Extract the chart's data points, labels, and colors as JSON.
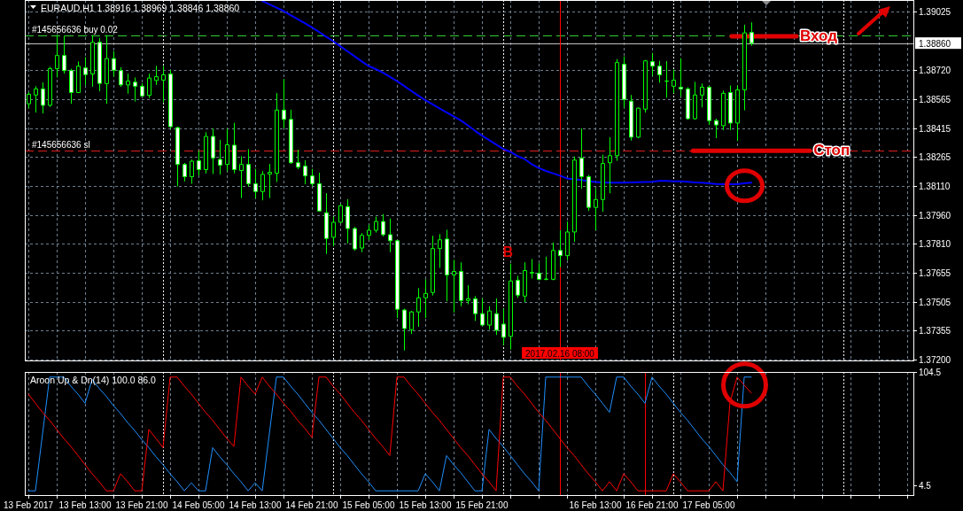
{
  "chart_data": [
    {
      "type": "candlestick",
      "title": "EURAUD,H1 1.38916 1.38969 1.38846 1.38860",
      "x": [
        "2017-02-13T05:00",
        "2017-02-13T06:00",
        "2017-02-13T07:00",
        "2017-02-13T08:00",
        "2017-02-13T09:00",
        "2017-02-13T10:00",
        "2017-02-13T11:00",
        "2017-02-13T12:00",
        "2017-02-13T13:00",
        "2017-02-13T14:00",
        "2017-02-13T15:00",
        "2017-02-13T16:00",
        "2017-02-13T17:00",
        "2017-02-13T18:00",
        "2017-02-13T19:00",
        "2017-02-13T20:00",
        "2017-02-13T21:00",
        "2017-02-13T22:00",
        "2017-02-13T23:00",
        "2017-02-14T00:00",
        "2017-02-14T01:00",
        "2017-02-14T02:00",
        "2017-02-14T03:00",
        "2017-02-14T04:00",
        "2017-02-14T05:00",
        "2017-02-14T06:00",
        "2017-02-14T07:00",
        "2017-02-14T08:00",
        "2017-02-14T09:00",
        "2017-02-14T10:00",
        "2017-02-14T11:00",
        "2017-02-14T12:00",
        "2017-02-14T13:00",
        "2017-02-14T14:00",
        "2017-02-14T15:00",
        "2017-02-14T16:00",
        "2017-02-14T17:00",
        "2017-02-14T18:00",
        "2017-02-14T19:00",
        "2017-02-14T20:00",
        "2017-02-14T21:00",
        "2017-02-14T22:00",
        "2017-02-14T23:00",
        "2017-02-15T00:00",
        "2017-02-15T01:00",
        "2017-02-15T02:00",
        "2017-02-15T03:00",
        "2017-02-15T04:00",
        "2017-02-15T05:00",
        "2017-02-15T06:00",
        "2017-02-15T07:00",
        "2017-02-15T08:00",
        "2017-02-15T09:00",
        "2017-02-15T10:00",
        "2017-02-15T11:00",
        "2017-02-15T12:00",
        "2017-02-15T13:00",
        "2017-02-15T14:00",
        "2017-02-15T15:00",
        "2017-02-15T16:00",
        "2017-02-15T17:00",
        "2017-02-15T18:00",
        "2017-02-15T19:00",
        "2017-02-15T20:00",
        "2017-02-15T21:00",
        "2017-02-15T22:00",
        "2017-02-15T23:00",
        "2017-02-16T00:00",
        "2017-02-16T01:00",
        "2017-02-16T02:00",
        "2017-02-16T03:00",
        "2017-02-16T04:00",
        "2017-02-16T05:00",
        "2017-02-16T06:00",
        "2017-02-16T07:00",
        "2017-02-16T08:00",
        "2017-02-16T09:00",
        "2017-02-16T10:00",
        "2017-02-16T11:00",
        "2017-02-16T12:00",
        "2017-02-16T13:00",
        "2017-02-16T14:00",
        "2017-02-16T15:00",
        "2017-02-16T16:00",
        "2017-02-16T17:00",
        "2017-02-16T18:00",
        "2017-02-16T19:00",
        "2017-02-16T20:00",
        "2017-02-16T21:00",
        "2017-02-16T22:00",
        "2017-02-16T23:00",
        "2017-02-17T00:00",
        "2017-02-17T01:00",
        "2017-02-17T02:00",
        "2017-02-17T03:00",
        "2017-02-17T04:00",
        "2017-02-17T05:00",
        "2017-02-17T06:00",
        "2017-02-17T07:00",
        "2017-02-17T08:00",
        "2017-02-17T09:00",
        "2017-02-17T10:00",
        "2017-02-17T11:00"
      ],
      "ohlc": [
        [
          1.38542,
          1.38603,
          1.38519,
          1.38592
        ],
        [
          1.38588,
          1.38634,
          1.38496,
          1.3862
        ],
        [
          1.3862,
          1.38654,
          1.38491,
          1.38534
        ],
        [
          1.38534,
          1.38736,
          1.38526,
          1.38726
        ],
        [
          1.38726,
          1.38902,
          1.3868,
          1.38795
        ],
        [
          1.38795,
          1.38899,
          1.387,
          1.38716
        ],
        [
          1.38716,
          1.38726,
          1.38542,
          1.38601
        ],
        [
          1.38601,
          1.38764,
          1.38598,
          1.38739
        ],
        [
          1.3873,
          1.38787,
          1.38641,
          1.38695
        ],
        [
          1.38698,
          1.38902,
          1.38631,
          1.38864
        ],
        [
          1.38864,
          1.38887,
          1.38608,
          1.38649
        ],
        [
          1.38648,
          1.38902,
          1.38542,
          1.38779
        ],
        [
          1.38779,
          1.38818,
          1.38684,
          1.38718
        ],
        [
          1.38716,
          1.38733,
          1.38631,
          1.38641
        ],
        [
          1.38641,
          1.387,
          1.38595,
          1.38661
        ],
        [
          1.38655,
          1.3868,
          1.38554,
          1.38634
        ],
        [
          1.38634,
          1.38649,
          1.3858,
          1.38583
        ],
        [
          1.38586,
          1.387,
          1.38572,
          1.38677
        ],
        [
          1.38664,
          1.38741,
          1.38641,
          1.38684
        ],
        [
          1.38666,
          1.38741,
          1.38549,
          1.38694
        ],
        [
          1.38698,
          1.38718,
          1.38411,
          1.38422
        ],
        [
          1.38417,
          1.38422,
          1.38109,
          1.38224
        ],
        [
          1.38224,
          1.38232,
          1.38135,
          1.3816
        ],
        [
          1.3816,
          1.3825,
          1.38123,
          1.38241
        ],
        [
          1.38244,
          1.38296,
          1.38166,
          1.38197
        ],
        [
          1.38197,
          1.38393,
          1.38177,
          1.38371
        ],
        [
          1.38371,
          1.38411,
          1.38174,
          1.38258
        ],
        [
          1.3825,
          1.38353,
          1.38171,
          1.3822
        ],
        [
          1.38224,
          1.38411,
          1.38189,
          1.38327
        ],
        [
          1.38325,
          1.38442,
          1.38178,
          1.38197
        ],
        [
          1.38192,
          1.38267,
          1.38048,
          1.38224
        ],
        [
          1.38224,
          1.38304,
          1.38109,
          1.38123
        ],
        [
          1.38123,
          1.38201,
          1.38048,
          1.38082
        ],
        [
          1.38082,
          1.38189,
          1.38036,
          1.38172
        ],
        [
          1.38174,
          1.38227,
          1.38048,
          1.38183
        ],
        [
          1.38178,
          1.38598,
          1.38132,
          1.38509
        ],
        [
          1.38509,
          1.38672,
          1.38414,
          1.3846
        ],
        [
          1.3846,
          1.38511,
          1.38227,
          1.38233
        ],
        [
          1.38233,
          1.38301,
          1.382,
          1.3821
        ],
        [
          1.38215,
          1.38246,
          1.3812,
          1.38164
        ],
        [
          1.38164,
          1.38201,
          1.38111,
          1.38123
        ],
        [
          1.38123,
          1.38181,
          1.37979,
          1.3798
        ],
        [
          1.37971,
          1.38074,
          1.37755,
          1.37836
        ],
        [
          1.37842,
          1.37951,
          1.37795,
          1.37921
        ],
        [
          1.37921,
          1.38017,
          1.37916,
          1.38008
        ],
        [
          1.38003,
          1.38042,
          1.3781,
          1.37888
        ],
        [
          1.37888,
          1.37896,
          1.37773,
          1.37781
        ],
        [
          1.37786,
          1.37864,
          1.37764,
          1.37852
        ],
        [
          1.37852,
          1.37908,
          1.37829,
          1.37879
        ],
        [
          1.37879,
          1.37951,
          1.37867,
          1.37925
        ],
        [
          1.37925,
          1.37964,
          1.37847,
          1.37856
        ],
        [
          1.37856,
          1.37941,
          1.37764,
          1.37824
        ],
        [
          1.37824,
          1.37829,
          1.37419,
          1.37465
        ],
        [
          1.37461,
          1.37468,
          1.37249,
          1.37364
        ],
        [
          1.37358,
          1.37456,
          1.37335,
          1.37451
        ],
        [
          1.37451,
          1.37576,
          1.37373,
          1.37525
        ],
        [
          1.37525,
          1.37622,
          1.37419,
          1.37548
        ],
        [
          1.37553,
          1.3785,
          1.37537,
          1.37783
        ],
        [
          1.37783,
          1.37859,
          1.37682,
          1.37829
        ],
        [
          1.37833,
          1.37882,
          1.37507,
          1.37645
        ],
        [
          1.37645,
          1.37724,
          1.37448,
          1.37663
        ],
        [
          1.37663,
          1.37711,
          1.37481,
          1.37511
        ],
        [
          1.37511,
          1.37591,
          1.37491,
          1.3752
        ],
        [
          1.3752,
          1.37534,
          1.37404,
          1.37442
        ],
        [
          1.37442,
          1.37522,
          1.37381,
          1.37382
        ],
        [
          1.37382,
          1.37481,
          1.37358,
          1.37456
        ],
        [
          1.37442,
          1.37522,
          1.3733,
          1.37355
        ],
        [
          1.37387,
          1.37468,
          1.37277,
          1.37318
        ],
        [
          1.37323,
          1.37704,
          1.37254,
          1.37613
        ],
        [
          1.37617,
          1.3764,
          1.37525,
          1.37539
        ],
        [
          1.37534,
          1.37711,
          1.37502,
          1.37668
        ],
        [
          1.37655,
          1.37728,
          1.37626,
          1.37658
        ],
        [
          1.37654,
          1.37706,
          1.37617,
          1.37622
        ],
        [
          1.37622,
          1.37741,
          1.37617,
          1.37623
        ],
        [
          1.37622,
          1.37815,
          1.37617,
          1.37773
        ],
        [
          1.37773,
          1.37879,
          1.37686,
          1.37746
        ],
        [
          1.37746,
          1.37925,
          1.37723,
          1.3787
        ],
        [
          1.3787,
          1.38266,
          1.37818,
          1.38247
        ],
        [
          1.38257,
          1.38413,
          1.38096,
          1.3816
        ],
        [
          1.3816,
          1.38169,
          1.3798,
          1.37999
        ],
        [
          1.37999,
          1.38096,
          1.37879,
          1.3804
        ],
        [
          1.3804,
          1.38275,
          1.37976,
          1.38229
        ],
        [
          1.38233,
          1.38367,
          1.38073,
          1.3827
        ],
        [
          1.3827,
          1.38776,
          1.38243,
          1.38758
        ],
        [
          1.38749,
          1.3879,
          1.38523,
          1.38565
        ],
        [
          1.38556,
          1.38588,
          1.38349,
          1.38367
        ],
        [
          1.38367,
          1.38523,
          1.38362,
          1.38519
        ],
        [
          1.38514,
          1.38772,
          1.38496,
          1.38767
        ],
        [
          1.38763,
          1.38809,
          1.38689,
          1.38739
        ],
        [
          1.38739,
          1.38767,
          1.38652,
          1.38694
        ],
        [
          1.38661,
          1.38766,
          1.38574,
          1.3866
        ],
        [
          1.38634,
          1.38721,
          1.38597,
          1.38666
        ],
        [
          1.38629,
          1.38781,
          1.38579,
          1.3862
        ],
        [
          1.3862,
          1.38629,
          1.38459,
          1.38464
        ],
        [
          1.38464,
          1.38657,
          1.38459,
          1.38588
        ],
        [
          1.38588,
          1.38648,
          1.38523,
          1.38629
        ],
        [
          1.38629,
          1.38635,
          1.38431,
          1.38454
        ],
        [
          1.38454,
          1.38464,
          1.38362,
          1.38431
        ],
        [
          1.38427,
          1.38611,
          1.38404,
          1.38597
        ],
        [
          1.38601,
          1.38638,
          1.38404,
          1.38441
        ],
        [
          1.38441,
          1.38638,
          1.38347,
          1.38615
        ],
        [
          1.38615,
          1.38956,
          1.38508,
          1.38914
        ],
        [
          1.38916,
          1.38969,
          1.38846,
          1.3886
        ]
      ],
      "color": "#00ff00",
      "series": [
        {
          "type": "line",
          "color": "#0000ff",
          "values": [
            null,
            null,
            null,
            null,
            null,
            null,
            null,
            null,
            null,
            null,
            null,
            null,
            null,
            null,
            null,
            null,
            null,
            null,
            null,
            null,
            null,
            null,
            null,
            null,
            null,
            null,
            null,
            null,
            null,
            null,
            null,
            null,
            null,
            1.39081,
            1.39063,
            1.39046,
            1.39029,
            1.39007,
            1.38986,
            1.38965,
            1.38943,
            1.38919,
            1.38894,
            1.3887,
            1.38844,
            1.38818,
            1.38792,
            1.38765,
            1.3874,
            1.38724,
            1.38706,
            1.38684,
            1.38661,
            1.38636,
            1.3861,
            1.38585,
            1.38561,
            1.3854,
            1.38518,
            1.38497,
            1.38476,
            1.38455,
            1.38429,
            1.38401,
            1.38375,
            1.38352,
            1.38329,
            1.38305,
            1.3829,
            1.38268,
            1.38253,
            1.38226,
            1.38206,
            1.3819,
            1.38178,
            1.38165,
            1.38151,
            1.38146,
            1.38142,
            1.38137,
            1.38132,
            1.3813,
            1.38128,
            1.38129,
            1.38129,
            1.3813,
            1.38131,
            1.38132,
            1.38133,
            1.38138,
            1.38138,
            1.38136,
            1.38135,
            1.38133,
            1.3813,
            1.38128,
            1.38125,
            1.38122,
            1.3812,
            1.3812,
            1.3812,
            1.38125,
            1.38128
          ]
        }
      ],
      "xlim": [
        "2017-02-13T04:30",
        "2017-02-18T10:00"
      ],
      "ylim": [
        1.37192,
        1.39086
      ],
      "xticks": [
        "2017-02-13T05:00",
        "2017-02-13T09:00",
        "2017-02-13T13:00",
        "2017-02-13T17:00",
        "2017-02-13T21:00",
        "2017-02-14T01:00",
        "2017-02-14T05:00",
        "2017-02-14T09:00",
        "2017-02-14T13:00",
        "2017-02-14T17:00",
        "2017-02-14T21:00",
        "2017-02-15T01:00",
        "2017-02-15T05:00",
        "2017-02-15T09:00",
        "2017-02-15T13:00",
        "2017-02-15T17:00",
        "2017-02-15T21:00",
        "2017-02-16T01:00",
        "2017-02-16T05:00",
        "2017-02-16T09:00",
        "2017-02-16T13:00",
        "2017-02-16T17:00",
        "2017-02-16T21:00",
        "2017-02-17T01:00",
        "2017-02-17T05:00",
        "2017-02-17T09:00",
        "2017-02-17T13:00",
        "2017-02-17T17:00",
        "2017-02-17T21:00",
        "2017-02-18T01:00",
        "2017-02-18T05:00",
        "2017-02-18T09:00"
      ],
      "yticks": [
        1.39025,
        {
          "value": 1.3872,
          "label": "1.38720"
        },
        1.38565,
        1.38415,
        1.38265,
        {
          "value": 1.3811,
          "label": "1.38110"
        },
        {
          "value": 1.3796,
          "label": "1.37960"
        },
        {
          "value": 1.3781,
          "label": "1.37810"
        },
        1.37655,
        1.37505,
        1.37355,
        {
          "value": 1.372,
          "label": "1.37200"
        }
      ],
      "grid": true,
      "tick_labels": "y",
      "ref_lines": [
        {
          "axis": "y",
          "value": 1.38901,
          "label": "#145656636 buy 0.02",
          "color": "#32cd32",
          "line_style": "dashed"
        },
        {
          "axis": "y",
          "value": 1.3886,
          "label": "1.38860",
          "color": "#c0c0c0"
        },
        {
          "axis": "y",
          "value": 1.38299,
          "label": "#145656636 sl",
          "color": "#dc1e1e",
          "line_style": "dashed"
        },
        {
          "axis": "x",
          "value": "2017-02-16T08:00",
          "label": "2017.02.16 08:00",
          "color": "#ff0000"
        },
        {
          "axis": "x",
          "value": "2017-02-14T00:00",
          "color": "#ffffff",
          "line_style": "dotted"
        },
        {
          "axis": "x",
          "value": "2017-02-15T00:00",
          "color": "#ffffff",
          "line_style": "dotted"
        },
        {
          "axis": "x",
          "value": "2017-02-16T00:00",
          "color": "#ffffff",
          "line_style": "dotted"
        },
        {
          "axis": "x",
          "value": "2017-02-17T00:00",
          "color": "#ffffff",
          "line_style": "dotted"
        },
        {
          "axis": "x",
          "value": "2017-02-18T00:00",
          "color": "#ffffff",
          "line_style": "dotted"
        }
      ],
      "annotations": [
        {
          "text": "Вход",
          "x": "2017-02-17T20:30",
          "y": 1.389
        },
        {
          "text": "Стоп",
          "x": "2017-02-17T22:20",
          "y": 1.383
        },
        "B"
      ]
    },
    {
      "type": "line",
      "title": "Aroon Up & Dn(14) 100.0 86.0",
      "x": [
        "2017-02-13T05:00",
        "2017-02-13T06:00",
        "2017-02-13T07:00",
        "2017-02-13T08:00",
        "2017-02-13T09:00",
        "2017-02-13T10:00",
        "2017-02-13T11:00",
        "2017-02-13T12:00",
        "2017-02-13T13:00",
        "2017-02-13T14:00",
        "2017-02-13T15:00",
        "2017-02-13T16:00",
        "2017-02-13T17:00",
        "2017-02-13T18:00",
        "2017-02-13T19:00",
        "2017-02-13T20:00",
        "2017-02-13T21:00",
        "2017-02-13T22:00",
        "2017-02-13T23:00",
        "2017-02-14T00:00",
        "2017-02-14T01:00",
        "2017-02-14T02:00",
        "2017-02-14T03:00",
        "2017-02-14T04:00",
        "2017-02-14T05:00",
        "2017-02-14T06:00",
        "2017-02-14T07:00",
        "2017-02-14T08:00",
        "2017-02-14T09:00",
        "2017-02-14T10:00",
        "2017-02-14T11:00",
        "2017-02-14T12:00",
        "2017-02-14T13:00",
        "2017-02-14T14:00",
        "2017-02-14T15:00",
        "2017-02-14T16:00",
        "2017-02-14T17:00",
        "2017-02-14T18:00",
        "2017-02-14T19:00",
        "2017-02-14T20:00",
        "2017-02-14T21:00",
        "2017-02-14T22:00",
        "2017-02-14T23:00",
        "2017-02-15T00:00",
        "2017-02-15T01:00",
        "2017-02-15T02:00",
        "2017-02-15T03:00",
        "2017-02-15T04:00",
        "2017-02-15T05:00",
        "2017-02-15T06:00",
        "2017-02-15T07:00",
        "2017-02-15T08:00",
        "2017-02-15T09:00",
        "2017-02-15T10:00",
        "2017-02-15T11:00",
        "2017-02-15T12:00",
        "2017-02-15T13:00",
        "2017-02-15T14:00",
        "2017-02-15T15:00",
        "2017-02-15T16:00",
        "2017-02-15T17:00",
        "2017-02-15T18:00",
        "2017-02-15T19:00",
        "2017-02-15T20:00",
        "2017-02-15T21:00",
        "2017-02-15T22:00",
        "2017-02-15T23:00",
        "2017-02-16T00:00",
        "2017-02-16T01:00",
        "2017-02-16T02:00",
        "2017-02-16T03:00",
        "2017-02-16T04:00",
        "2017-02-16T05:00",
        "2017-02-16T06:00",
        "2017-02-16T07:00",
        "2017-02-16T08:00",
        "2017-02-16T09:00",
        "2017-02-16T10:00",
        "2017-02-16T11:00",
        "2017-02-16T12:00",
        "2017-02-16T13:00",
        "2017-02-16T14:00",
        "2017-02-16T15:00",
        "2017-02-16T16:00",
        "2017-02-16T17:00",
        "2017-02-16T18:00",
        "2017-02-16T19:00",
        "2017-02-16T20:00",
        "2017-02-16T21:00",
        "2017-02-16T22:00",
        "2017-02-16T23:00",
        "2017-02-17T00:00",
        "2017-02-17T01:00",
        "2017-02-17T02:00",
        "2017-02-17T03:00",
        "2017-02-17T04:00",
        "2017-02-17T05:00",
        "2017-02-17T06:00",
        "2017-02-17T07:00",
        "2017-02-17T08:00",
        "2017-02-17T09:00",
        "2017-02-17T10:00",
        "2017-02-17T11:00"
      ],
      "series": [
        {
          "color": "#1e90ff",
          "values": [
            0,
            0,
            50,
            100,
            100,
            100,
            92,
            85,
            77,
            98,
            90,
            83,
            75,
            68,
            60,
            53,
            45,
            38,
            30,
            23,
            15,
            8,
            0,
            7,
            0,
            0,
            38,
            30,
            23,
            15,
            8,
            0,
            7,
            0,
            50,
            100,
            100,
            92,
            85,
            77,
            69,
            62,
            54,
            46,
            38,
            31,
            23,
            15,
            8,
            0,
            0,
            0,
            0,
            0,
            0,
            0,
            15,
            8,
            0,
            31,
            23,
            16,
            8,
            0,
            0,
            54,
            46,
            39,
            31,
            23,
            15,
            8,
            0,
            100,
            100,
            100,
            100,
            100,
            100,
            92,
            85,
            77,
            69,
            100,
            100,
            92,
            85,
            77,
            100,
            92,
            85,
            77,
            69,
            62,
            54,
            46,
            39,
            31,
            23,
            16,
            8,
            100,
            100
          ]
        },
        {
          "color": "#ff0000",
          "values": [
            85,
            77,
            69,
            62,
            54,
            46,
            39,
            31,
            23,
            15,
            8,
            0,
            0,
            15,
            8,
            0,
            0,
            54,
            46,
            38,
            100,
            100,
            92,
            85,
            77,
            69,
            62,
            54,
            46,
            39,
            100,
            92,
            85,
            100,
            92,
            85,
            77,
            70,
            62,
            55,
            47,
            100,
            100,
            92,
            85,
            77,
            69,
            62,
            54,
            46,
            39,
            31,
            100,
            100,
            92,
            85,
            77,
            69,
            62,
            54,
            46,
            38,
            31,
            23,
            15,
            8,
            0,
            100,
            100,
            92,
            85,
            77,
            69,
            62,
            54,
            46,
            38,
            31,
            23,
            15,
            8,
            0,
            8,
            0,
            15,
            8,
            0,
            0,
            0,
            0,
            0,
            15,
            8,
            0,
            0,
            0,
            0,
            8,
            0,
            78,
            100,
            93,
            86
          ]
        }
      ],
      "xlim": [
        "2017-02-13T04:30",
        "2017-02-18T10:00"
      ],
      "ylim": [
        -4.5,
        104.5
      ],
      "xticks": [
        {
          "value": "2017-02-13T05:00",
          "label": "13 Feb 2017"
        },
        {
          "value": "2017-02-13T09:00",
          "label": null
        },
        {
          "value": "2017-02-13T13:00",
          "label": "13 Feb 13:00"
        },
        {
          "value": "2017-02-13T17:00",
          "label": null
        },
        {
          "value": "2017-02-13T21:00",
          "label": "13 Feb 21:00"
        },
        {
          "value": "2017-02-14T01:00",
          "label": null
        },
        {
          "value": "2017-02-14T05:00",
          "label": "14 Feb 05:00"
        },
        {
          "value": "2017-02-14T09:00",
          "label": null
        },
        {
          "value": "2017-02-14T13:00",
          "label": "14 Feb 13:00"
        },
        {
          "value": "2017-02-14T17:00",
          "label": null
        },
        {
          "value": "2017-02-14T21:00",
          "label": "14 Feb 21:00"
        },
        {
          "value": "2017-02-15T01:00",
          "label": null
        },
        {
          "value": "2017-02-15T05:00",
          "label": "15 Feb 05:00"
        },
        {
          "value": "2017-02-15T09:00",
          "label": null
        },
        {
          "value": "2017-02-15T13:00",
          "label": "15 Feb 13:00"
        },
        {
          "value": "2017-02-15T17:00",
          "label": null
        },
        {
          "value": "2017-02-15T21:00",
          "label": "15 Feb 21:00"
        },
        {
          "value": "2017-02-16T01:00",
          "label": null
        },
        {
          "value": "2017-02-16T05:00",
          "label": null
        },
        {
          "value": "2017-02-16T09:00",
          "label": null
        },
        {
          "value": "2017-02-16T13:00",
          "label": "16 Feb 13:00"
        },
        {
          "value": "2017-02-16T17:00",
          "label": null
        },
        {
          "value": "2017-02-16T21:00",
          "label": "16 Feb 21:00"
        },
        {
          "value": "2017-02-17T01:00",
          "label": null
        },
        {
          "value": "2017-02-17T05:00",
          "label": "17 Feb 05:00"
        },
        {
          "value": "2017-02-17T09:00",
          "label": null
        },
        {
          "value": "2017-02-17T13:00",
          "label": null
        },
        {
          "value": "2017-02-17T17:00",
          "label": null
        },
        {
          "value": "2017-02-17T21:00",
          "label": null
        },
        {
          "value": "2017-02-18T01:00",
          "label": null
        },
        {
          "value": "2017-02-18T05:00",
          "label": null
        },
        {
          "value": "2017-02-18T09:00",
          "label": null
        }
      ],
      "yticks": [
        104.5,
        4.5
      ],
      "grid": "x",
      "ref_lines": [
        {
          "axis": "x",
          "value": "2017-02-16T08:00",
          "color": "#ff0000"
        },
        {
          "axis": "x",
          "value": "2017-02-16T20:00",
          "color": "#ff0000"
        },
        {
          "axis": "x",
          "value": "2017-02-14T00:00",
          "color": "#ffffff",
          "line_style": "dotted"
        },
        {
          "axis": "x",
          "value": "2017-02-15T00:00",
          "color": "#ffffff",
          "line_style": "dotted"
        },
        {
          "axis": "x",
          "value": "2017-02-16T00:00",
          "color": "#ffffff",
          "line_style": "dotted"
        },
        {
          "axis": "x",
          "value": "2017-02-17T00:00",
          "color": "#ffffff",
          "line_style": "dotted"
        },
        {
          "axis": "x",
          "value": "2017-02-18T00:00",
          "color": "#ffffff",
          "line_style": "dotted"
        }
      ]
    }
  ]
}
